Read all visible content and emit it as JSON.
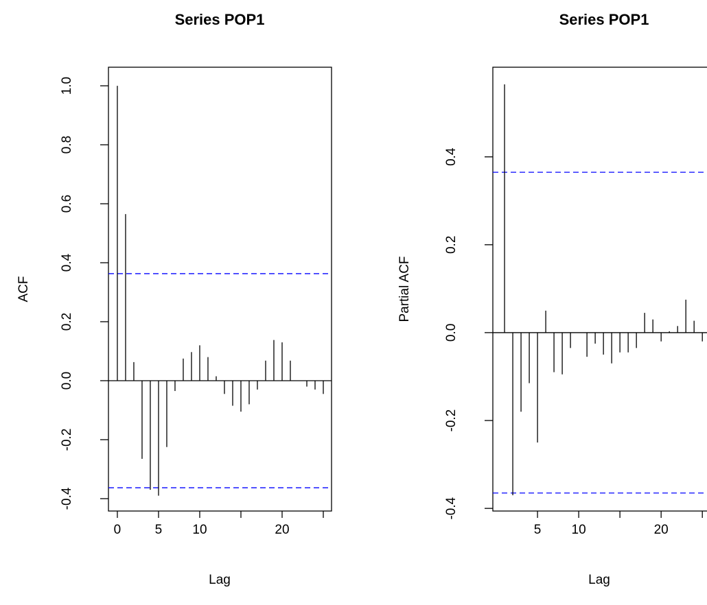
{
  "chart_data": [
    {
      "type": "bar",
      "title": "Series  POP1",
      "xlabel": "Lag",
      "ylabel": "ACF",
      "x": [
        0,
        1,
        2,
        3,
        4,
        5,
        6,
        7,
        8,
        9,
        10,
        11,
        12,
        13,
        14,
        15,
        16,
        17,
        18,
        19,
        20,
        21,
        22,
        23,
        24,
        25
      ],
      "values": [
        1.0,
        0.565,
        0.063,
        -0.265,
        -0.37,
        -0.39,
        -0.225,
        -0.035,
        0.075,
        0.097,
        0.12,
        0.08,
        0.015,
        -0.045,
        -0.085,
        -0.105,
        -0.08,
        -0.03,
        0.068,
        0.138,
        0.13,
        0.068,
        0.0,
        -0.02,
        -0.03,
        -0.045
      ],
      "color": "#000000",
      "ci": [
        0.363,
        -0.363
      ],
      "ci_color": "#0000ff",
      "xlim": [
        -1.08,
        26
      ],
      "ylim": [
        -0.442,
        1.063
      ],
      "xticks": [
        0,
        5,
        10,
        {
          "value": 15,
          "label": null
        },
        20,
        {
          "value": 25,
          "label": null
        }
      ],
      "yticks": [
        -0.4,
        -0.2,
        {
          "value": 0,
          "label": "0.0"
        },
        0.2,
        0.4,
        0.6,
        0.8,
        {
          "value": 1,
          "label": "1.0"
        }
      ]
    },
    {
      "type": "bar",
      "title": "Series  POP1",
      "xlabel": "Lag",
      "ylabel": "Partial ACF",
      "x": [
        1,
        2,
        3,
        4,
        5,
        6,
        7,
        8,
        9,
        10,
        11,
        12,
        13,
        14,
        15,
        16,
        17,
        18,
        19,
        20,
        21,
        22,
        23,
        24,
        25
      ],
      "values": [
        0.565,
        -0.37,
        -0.18,
        -0.115,
        -0.25,
        0.05,
        -0.09,
        -0.095,
        -0.035,
        0.0,
        -0.055,
        -0.025,
        -0.05,
        -0.07,
        -0.045,
        -0.045,
        -0.035,
        0.045,
        0.03,
        -0.02,
        0.003,
        0.015,
        0.075,
        0.027,
        -0.02
      ],
      "color": "#000000",
      "ci": [
        0.365,
        -0.365
      ],
      "ci_color": "#0000ff",
      "xlim": [
        -0.42,
        25.9
      ],
      "ylim": [
        -0.406,
        0.604
      ],
      "xticks": [
        5,
        10,
        {
          "value": 15,
          "label": null
        },
        20,
        {
          "value": 25,
          "label": null
        }
      ],
      "yticks": [
        -0.4,
        -0.2,
        {
          "value": 0,
          "label": "0.0"
        },
        0.2,
        0.4
      ]
    }
  ]
}
